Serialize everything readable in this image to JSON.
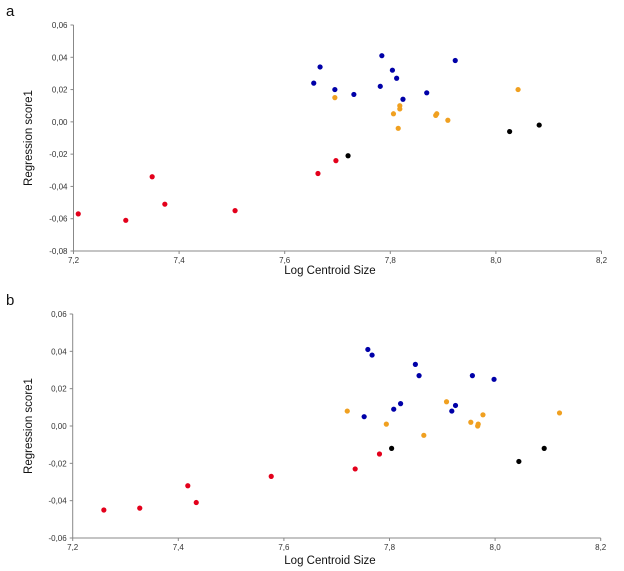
{
  "chart_data": [
    {
      "type": "scatter",
      "panel_label": "a",
      "xlabel": "Log Centroid Size",
      "ylabel": "Regression score1",
      "xlim": [
        7.2,
        8.2
      ],
      "ylim": [
        -0.08,
        0.06
      ],
      "xticks": [
        7.2,
        7.4,
        7.6,
        7.8,
        8.0,
        8.2
      ],
      "xtick_labels": [
        "7,2",
        "7,4",
        "7,6",
        "7,8",
        "8,0",
        "8,2"
      ],
      "yticks": [
        0.06,
        0.04,
        0.02,
        0.0,
        -0.02,
        -0.04,
        -0.06,
        -0.08
      ],
      "ytick_labels": [
        "0,06",
        "0,04",
        "0,02",
        "0,00",
        "-0,02",
        "-0,04",
        "-0,06",
        "-0,08"
      ],
      "grid": false,
      "series": [
        {
          "name": "red",
          "color": "#e3001b",
          "points": [
            [
              7.209,
              -0.057
            ],
            [
              7.299,
              -0.061
            ],
            [
              7.349,
              -0.034
            ],
            [
              7.373,
              -0.051
            ],
            [
              7.506,
              -0.055
            ],
            [
              7.663,
              -0.032
            ],
            [
              7.697,
              -0.024
            ]
          ]
        },
        {
          "name": "black",
          "color": "#000000",
          "points": [
            [
              7.72,
              -0.021
            ],
            [
              8.026,
              -0.006
            ],
            [
              8.082,
              -0.002
            ]
          ]
        },
        {
          "name": "blue",
          "color": "#0000a8",
          "points": [
            [
              7.655,
              0.024
            ],
            [
              7.667,
              0.034
            ],
            [
              7.695,
              0.02
            ],
            [
              7.731,
              0.017
            ],
            [
              7.784,
              0.041
            ],
            [
              7.781,
              0.022
            ],
            [
              7.804,
              0.032
            ],
            [
              7.812,
              0.027
            ],
            [
              7.824,
              0.014
            ],
            [
              7.869,
              0.018
            ],
            [
              7.923,
              0.038
            ]
          ]
        },
        {
          "name": "orange",
          "color": "#f0a020",
          "points": [
            [
              7.695,
              0.015
            ],
            [
              7.806,
              0.005
            ],
            [
              7.818,
              0.01
            ],
            [
              7.818,
              0.008
            ],
            [
              7.815,
              -0.004
            ],
            [
              7.886,
              0.004
            ],
            [
              7.888,
              0.005
            ],
            [
              7.909,
              0.001
            ],
            [
              8.042,
              0.02
            ]
          ]
        }
      ]
    },
    {
      "type": "scatter",
      "panel_label": "b",
      "xlabel": "Log Centroid Size",
      "ylabel": "Regression score1",
      "xlim": [
        7.2,
        8.2
      ],
      "ylim": [
        -0.06,
        0.06
      ],
      "xticks": [
        7.2,
        7.4,
        7.6,
        7.8,
        8.0,
        8.2
      ],
      "xtick_labels": [
        "7,2",
        "7,4",
        "7,6",
        "7,8",
        "8,0",
        "8,2"
      ],
      "yticks": [
        0.06,
        0.04,
        0.02,
        0.0,
        -0.02,
        -0.04,
        -0.06
      ],
      "ytick_labels": [
        "0,06",
        "0,04",
        "0,02",
        "0,00",
        "-0,02",
        "-0,04",
        "-0,06"
      ],
      "grid": false,
      "series": [
        {
          "name": "red",
          "color": "#e3001b",
          "points": [
            [
              7.259,
              -0.045
            ],
            [
              7.327,
              -0.044
            ],
            [
              7.418,
              -0.032
            ],
            [
              7.434,
              -0.041
            ],
            [
              7.576,
              -0.027
            ],
            [
              7.735,
              -0.023
            ],
            [
              7.781,
              -0.015
            ]
          ]
        },
        {
          "name": "black",
          "color": "#000000",
          "points": [
            [
              7.804,
              -0.012
            ],
            [
              8.045,
              -0.019
            ],
            [
              8.093,
              -0.012
            ]
          ]
        },
        {
          "name": "blue",
          "color": "#0000a8",
          "points": [
            [
              7.759,
              0.041
            ],
            [
              7.767,
              0.038
            ],
            [
              7.752,
              0.005
            ],
            [
              7.808,
              0.009
            ],
            [
              7.821,
              0.012
            ],
            [
              7.849,
              0.033
            ],
            [
              7.856,
              0.027
            ],
            [
              7.918,
              0.008
            ],
            [
              7.925,
              0.011
            ],
            [
              7.957,
              0.027
            ],
            [
              7.998,
              0.025
            ]
          ]
        },
        {
          "name": "orange",
          "color": "#f0a020",
          "points": [
            [
              7.72,
              0.008
            ],
            [
              7.794,
              0.001
            ],
            [
              7.865,
              -0.005
            ],
            [
              7.908,
              0.013
            ],
            [
              7.954,
              0.002
            ],
            [
              7.968,
              0.001
            ],
            [
              7.967,
              0.0
            ],
            [
              7.977,
              0.006
            ],
            [
              8.122,
              0.007
            ]
          ]
        }
      ]
    }
  ]
}
